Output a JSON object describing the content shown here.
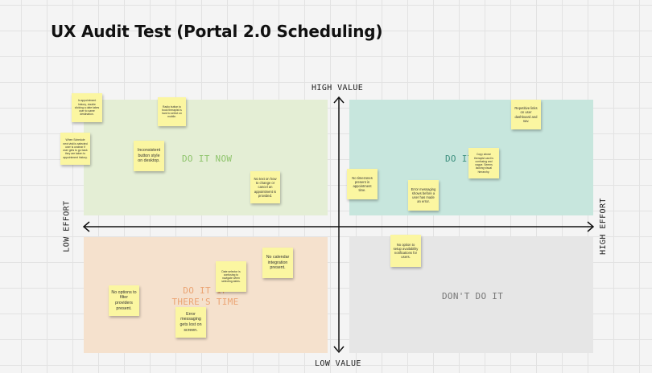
{
  "board": {
    "title": "UX Audit Test (Portal 2.0 Scheduling)"
  },
  "axes": {
    "top": "HIGH VALUE",
    "bottom": "LOW VALUE",
    "left": "LOW EFFORT",
    "right": "HIGH EFFORT"
  },
  "quadrants": {
    "do_it_now": "DO IT NOW",
    "do_it": "DO IT",
    "do_it_if_time": "DO IT IF THERE'S TIME",
    "dont_do_it": "DON'T DO IT"
  },
  "notes": {
    "appointment_history": "In appointment history, double clicking a date takes user to same destination.",
    "radio_button": "Radio button to book therapist is hard to select on mobile.",
    "schedule_error": "When Schedule next visit is selected user is unclear if user gets to go back they are taken to appointment history.",
    "inconsistent_button": "Inconsistent button style on desktop.",
    "no_text_change": "No text on how to change or cancel an appointment is provided.",
    "repetitive_links": "Repetitive links on user dashboard and nav.",
    "copy_above": "Copy above therapist card is confusing and vague. Seems lacking visual hierarchy.",
    "no_timezones": "No timezones present in appointment time.",
    "error_messaging_before": "Error messaging shows before a user has made an error.",
    "no_option_setup": "No option to setup availability notifications for users.",
    "date_selector": "Date selector is confusing to navigate when selecting dates.",
    "no_calendar": "No calendar integration present.",
    "no_filter": "No options to filter providers present.",
    "error_lost": "Error messaging gets lost on screen."
  }
}
